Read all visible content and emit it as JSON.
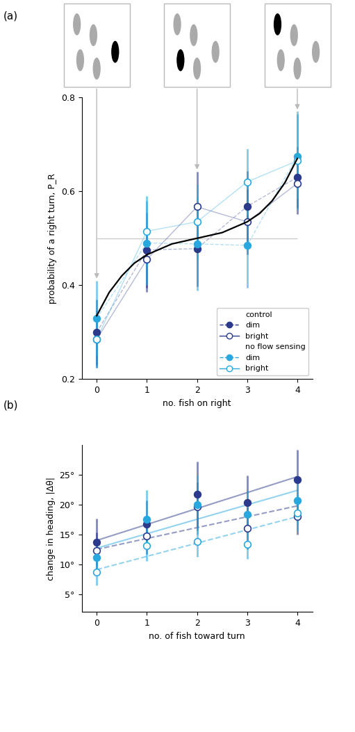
{
  "chart_data": [
    {
      "type": "line",
      "title": "(a)",
      "x_label": "no. fish on right",
      "y_label": "probability of a right turn, P_R",
      "x": [
        0,
        1,
        2,
        3,
        4
      ],
      "xlim": [
        -0.3,
        4.3
      ],
      "xticks": [
        0,
        1,
        2,
        3,
        4
      ],
      "ylim": [
        0.2,
        0.8
      ],
      "yticks": [
        0.2,
        0.4,
        0.6,
        0.8
      ],
      "reference_y": 0.5,
      "legend": "lower right",
      "series": [
        {
          "name": "dim",
          "group": "control",
          "color": "#2b3a8c",
          "marker": "filled_circle",
          "line_style": "dashed",
          "values": [
            0.3,
            0.475,
            0.478,
            0.568,
            0.63
          ],
          "errors": [
            0.07,
            0.08,
            0.08,
            0.075,
            0.065
          ]
        },
        {
          "name": "bright",
          "group": "control",
          "color": "#2b3a8c",
          "marker": "open_circle",
          "line_style": "solid",
          "values": [
            0.285,
            0.455,
            0.567,
            0.535,
            0.617
          ],
          "errors": [
            0.06,
            0.07,
            0.075,
            0.07,
            0.065
          ]
        },
        {
          "name": "dim",
          "group": "no flow sensing",
          "color": "#29a8e0",
          "marker": "filled_circle",
          "line_style": "dashed",
          "values": [
            0.33,
            0.49,
            0.488,
            0.485,
            0.675
          ],
          "errors": [
            0.08,
            0.09,
            0.1,
            0.09,
            0.09
          ]
        },
        {
          "name": "bright",
          "group": "no flow sensing",
          "color": "#29a8e0",
          "marker": "open_circle",
          "line_style": "solid",
          "values": [
            0.285,
            0.515,
            0.535,
            0.62,
            0.665
          ],
          "errors": [
            0.06,
            0.075,
            0.08,
            0.07,
            0.105
          ]
        }
      ],
      "fit": {
        "color": "#000000",
        "x": [
          0,
          0.25,
          0.5,
          0.75,
          1,
          1.5,
          2,
          2.5,
          3,
          3.25,
          3.5,
          3.75,
          4
        ],
        "values": [
          0.335,
          0.385,
          0.42,
          0.447,
          0.465,
          0.488,
          0.5,
          0.512,
          0.535,
          0.553,
          0.58,
          0.618,
          0.67
        ]
      }
    },
    {
      "type": "scatter",
      "title": "(b)",
      "x_label": "no. of fish toward turn",
      "y_label": "change in heading, |Δθ|",
      "x": [
        0,
        1,
        2,
        3,
        4
      ],
      "xlim": [
        -0.3,
        4.3
      ],
      "xticks": [
        0,
        1,
        2,
        3,
        4
      ],
      "ylim": [
        2,
        30
      ],
      "yticks": [
        {
          "value": 5,
          "label": "5°"
        },
        {
          "value": 10,
          "label": "10°"
        },
        {
          "value": 15,
          "label": "15°"
        },
        {
          "value": 20,
          "label": "20°"
        },
        {
          "value": 25,
          "label": "25°"
        }
      ],
      "series": [
        {
          "name": "dim",
          "group": "control",
          "color": "#2b3a8c",
          "marker": "filled_circle",
          "line_style": "solid",
          "values": [
            13.7,
            16.7,
            21.7,
            20.4,
            24.2
          ],
          "errors": [
            4.0,
            4.0,
            5.5,
            4.5,
            5.0
          ],
          "fit_x": [
            0,
            4
          ],
          "fit_values": [
            14.0,
            24.7
          ]
        },
        {
          "name": "bright",
          "group": "control",
          "color": "#2b3a8c",
          "marker": "open_circle",
          "line_style": "dashed",
          "values": [
            12.3,
            14.7,
            19.7,
            16.0,
            18.0
          ],
          "errors": [
            3.0,
            3.0,
            4.0,
            3.5,
            3.0
          ],
          "fit_x": [
            0,
            4
          ],
          "fit_values": [
            12.5,
            19.8
          ]
        },
        {
          "name": "dim",
          "group": "no flow sensing",
          "color": "#29a8e0",
          "marker": "filled_circle",
          "line_style": "solid",
          "values": [
            11.1,
            17.5,
            20.0,
            18.4,
            20.7
          ],
          "errors": [
            3.0,
            5.0,
            5.0,
            4.0,
            4.0
          ],
          "fit_x": [
            0,
            4
          ],
          "fit_values": [
            12.7,
            22.4
          ]
        },
        {
          "name": "bright",
          "group": "no flow sensing",
          "color": "#29a8e0",
          "marker": "open_circle",
          "line_style": "dashed",
          "values": [
            8.7,
            13.1,
            13.8,
            13.4,
            18.6
          ],
          "errors": [
            2.2,
            2.5,
            2.5,
            2.5,
            3.0
          ],
          "fit_x": [
            0,
            4
          ],
          "fit_values": [
            9.1,
            18.0
          ]
        }
      ]
    }
  ]
}
